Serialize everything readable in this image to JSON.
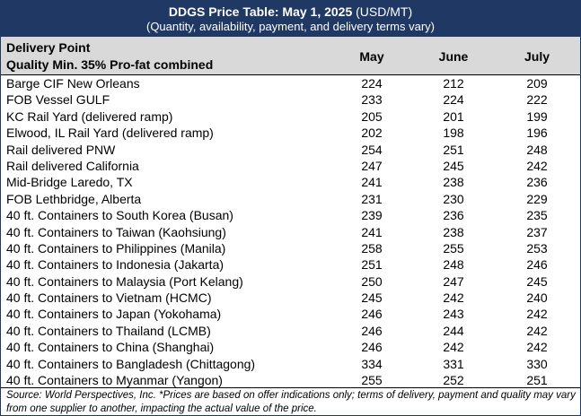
{
  "title": {
    "bold": "DDGS Price Table: May 1, 2025",
    "unit": "(USD/MT)",
    "subtitle": "(Quantity, availability, payment, and delivery terms vary)"
  },
  "header": {
    "col1_line1": "Delivery Point",
    "col1_line2": "Quality Min. 35% Pro-fat combined",
    "months": [
      "May",
      "June",
      "July"
    ]
  },
  "rows": [
    {
      "location": "Barge CIF New Orleans",
      "may": "224",
      "june": "212",
      "july": "209"
    },
    {
      "location": "FOB Vessel GULF",
      "may": "233",
      "june": "224",
      "july": "222"
    },
    {
      "location": "KC Rail Yard (delivered ramp)",
      "may": "205",
      "june": "201",
      "july": "199"
    },
    {
      "location": "Elwood, IL Rail Yard (delivered ramp)",
      "may": "202",
      "june": "198",
      "july": "196"
    },
    {
      "location": "Rail delivered PNW",
      "may": "254",
      "june": "251",
      "july": "248"
    },
    {
      "location": "Rail delivered California",
      "may": "247",
      "june": "245",
      "july": "242"
    },
    {
      "location": "Mid-Bridge Laredo, TX",
      "may": "241",
      "june": "238",
      "july": "236"
    },
    {
      "location": "FOB Lethbridge, Alberta",
      "may": "231",
      "june": "230",
      "july": "229"
    },
    {
      "location": "40 ft. Containers to South Korea (Busan)",
      "may": "239",
      "june": "236",
      "july": "235"
    },
    {
      "location": "40 ft. Containers to Taiwan (Kaohsiung)",
      "may": "241",
      "june": "238",
      "july": "237"
    },
    {
      "location": "40 ft. Containers to Philippines (Manila)",
      "may": "258",
      "june": "255",
      "july": "253"
    },
    {
      "location": "40 ft. Containers to Indonesia (Jakarta)",
      "may": "251",
      "june": "248",
      "july": "246"
    },
    {
      "location": "40 ft. Containers to Malaysia (Port Kelang)",
      "may": "250",
      "june": "247",
      "july": "245"
    },
    {
      "location": "40 ft. Containers to Vietnam (HCMC)",
      "may": "245",
      "june": "242",
      "july": "240"
    },
    {
      "location": "40 ft. Containers to Japan (Yokohama)",
      "may": "246",
      "june": "243",
      "july": "242"
    },
    {
      "location": "40 ft. Containers to Thailand (LCMB)",
      "may": "246",
      "june": "244",
      "july": "242"
    },
    {
      "location": "40 ft. Containers to China (Shanghai)",
      "may": "246",
      "june": "242",
      "july": "242"
    },
    {
      "location": "40 ft. Containers to Bangladesh (Chittagong)",
      "may": "334",
      "june": "331",
      "july": "330"
    },
    {
      "location": "40 ft. Containers to Myanmar (Yangon)",
      "may": "255",
      "june": "252",
      "july": "251"
    }
  ],
  "footer": "Source: World Perspectives, Inc. *Prices are based on offer indications only; terms of delivery, payment and quality may vary from one supplier to another, impacting the actual value of the price.",
  "colors": {
    "banner": "#1f3864",
    "header_bg": "#d9d9d9"
  }
}
